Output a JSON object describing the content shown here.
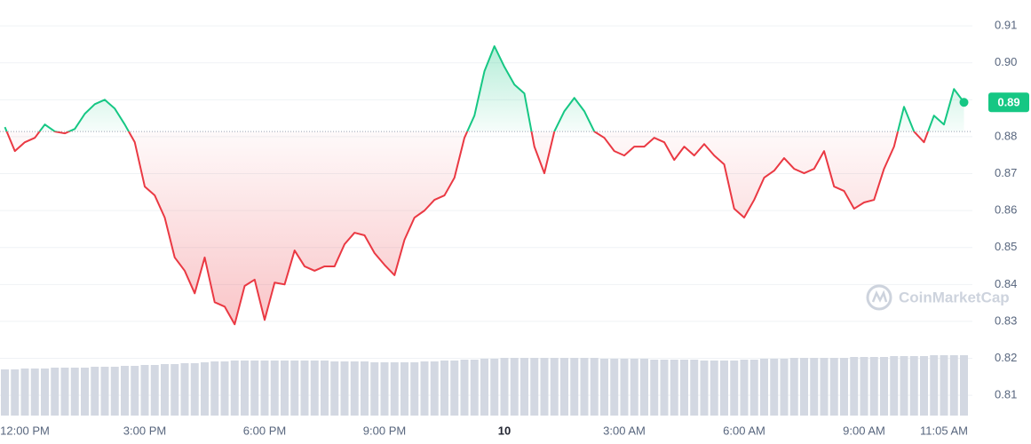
{
  "chart_data": {
    "type": "line",
    "categories": [
      null,
      null,
      "12:00 PM",
      null,
      null,
      null,
      null,
      null,
      null,
      null,
      null,
      null,
      null,
      null,
      "3:00 PM",
      null,
      null,
      null,
      null,
      null,
      null,
      null,
      null,
      null,
      null,
      null,
      "6:00 PM",
      null,
      null,
      null,
      null,
      null,
      null,
      null,
      null,
      null,
      null,
      null,
      "9:00 PM",
      null,
      null,
      null,
      null,
      null,
      null,
      null,
      null,
      null,
      null,
      null,
      "10",
      null,
      null,
      null,
      null,
      null,
      null,
      null,
      null,
      null,
      null,
      null,
      "3:00 AM",
      null,
      null,
      null,
      null,
      null,
      null,
      null,
      null,
      null,
      null,
      null,
      "6:00 AM",
      null,
      null,
      null,
      null,
      null,
      null,
      null,
      null,
      null,
      null,
      null,
      "9:00 AM",
      null,
      null,
      null,
      null,
      null,
      null,
      null,
      "11:05 AM",
      null,
      null
    ],
    "values": [
      0.8826,
      0.8761,
      0.8785,
      0.8797,
      0.8833,
      0.8814,
      0.8809,
      0.8821,
      0.8862,
      0.8888,
      0.89,
      0.8876,
      0.8833,
      0.8785,
      0.8665,
      0.8641,
      0.8581,
      0.8473,
      0.8437,
      0.8376,
      0.8473,
      0.8352,
      0.834,
      0.8292,
      0.8396,
      0.8413,
      0.8304,
      0.8405,
      0.84,
      0.8492,
      0.8449,
      0.8437,
      0.8449,
      0.8449,
      0.8509,
      0.854,
      0.8533,
      0.8485,
      0.8453,
      0.8425,
      0.8521,
      0.8581,
      0.86,
      0.8629,
      0.8641,
      0.8689,
      0.8797,
      0.8857,
      0.8977,
      0.9045,
      0.8989,
      0.8941,
      0.8917,
      0.8773,
      0.8701,
      0.8814,
      0.8869,
      0.8905,
      0.8869,
      0.8814,
      0.8797,
      0.8761,
      0.8749,
      0.8773,
      0.8773,
      0.8797,
      0.8785,
      0.8737,
      0.8773,
      0.8749,
      0.878,
      0.8749,
      0.8725,
      0.8605,
      0.8581,
      0.8629,
      0.8689,
      0.8708,
      0.8742,
      0.8713,
      0.8701,
      0.8713,
      0.8761,
      0.8665,
      0.8653,
      0.8605,
      0.8622,
      0.8629,
      0.8713,
      0.8773,
      0.8881,
      0.8814,
      0.8785,
      0.8857,
      0.8833,
      0.8929,
      0.8893
    ],
    "color_up": "#16c784",
    "color_down": "#ea3943",
    "reference_line": 0.8814,
    "ylim": [
      0.8045,
      0.917
    ],
    "yticks": [
      0.81,
      0.82,
      0.83,
      0.84,
      0.85,
      0.86,
      0.87,
      0.88,
      0.89,
      {
        "value": 0.9,
        "label": "0.90"
      },
      0.91
    ],
    "grid": true,
    "price_tag": "0.89",
    "volume": [
      52,
      52,
      53,
      53,
      53,
      54,
      54,
      54,
      54,
      55,
      55,
      55,
      56,
      56,
      57,
      57,
      58,
      58,
      59,
      59,
      60,
      61,
      61,
      62,
      62,
      62,
      62,
      62,
      62,
      62,
      62,
      62,
      62,
      61,
      61,
      61,
      61,
      60,
      60,
      60,
      60,
      60,
      61,
      61,
      62,
      62,
      63,
      63,
      64,
      64,
      65,
      65,
      65,
      65,
      65,
      65,
      65,
      65,
      65,
      65,
      64,
      64,
      64,
      64,
      64,
      63,
      63,
      63,
      63,
      63,
      62,
      62,
      62,
      62,
      63,
      63,
      64,
      64,
      64,
      65,
      65,
      65,
      65,
      65,
      65,
      66,
      66,
      66,
      66,
      67,
      67,
      67,
      67,
      68,
      68,
      68,
      68
    ],
    "volume_color": "#d3d8e2",
    "watermark": "CoinMarketCap"
  }
}
